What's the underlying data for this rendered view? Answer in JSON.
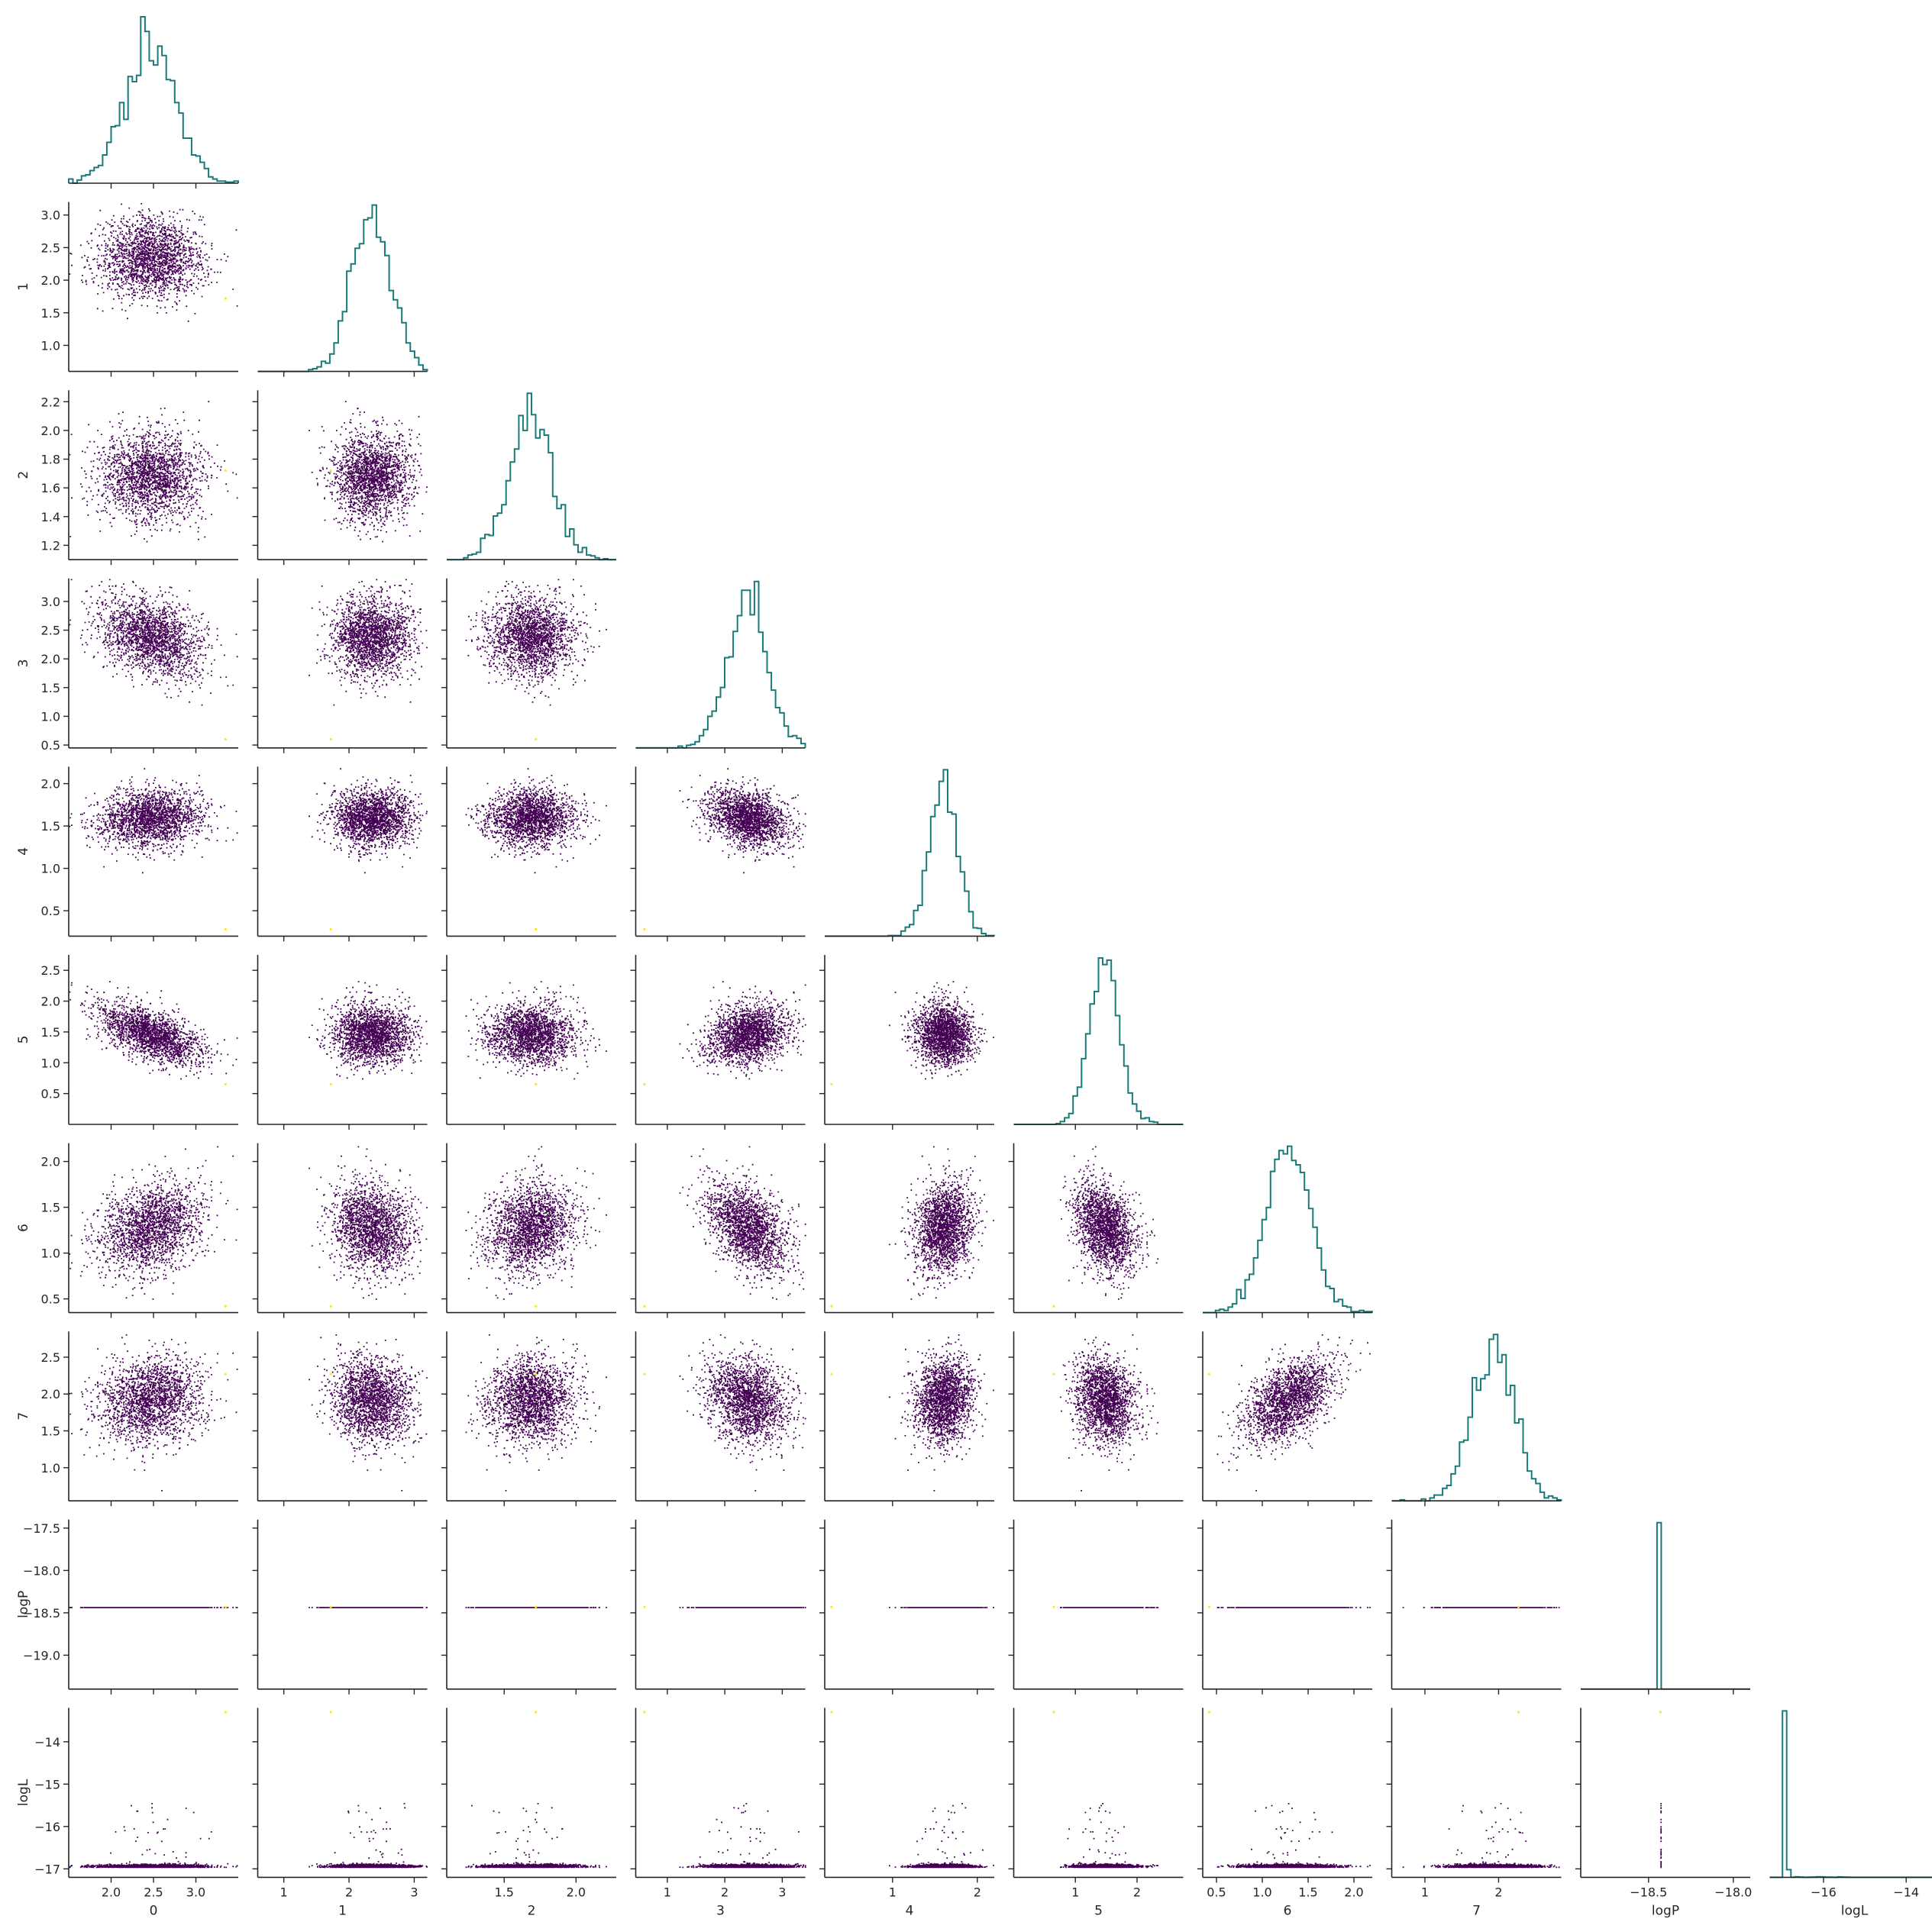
{
  "chart_data": {
    "type": "scatter",
    "kind": "corner-plot (pair plot) with marginal step histograms on the diagonal",
    "variables": [
      "0",
      "1",
      "2",
      "3",
      "4",
      "5",
      "6",
      "7",
      "logP",
      "logL"
    ],
    "grid": false,
    "legend": "none",
    "colors": {
      "scatter": "#440154",
      "outlier": "#fde725",
      "histogram": "#1a7a7a",
      "axis": "#262626"
    },
    "axes": [
      {
        "name": "0",
        "range": [
          1.5,
          3.5
        ],
        "ticks": [
          2.0,
          2.5,
          3.0
        ],
        "ticklabels": [
          "2.0",
          "2.5",
          "3.0"
        ],
        "mean": 2.45,
        "sd": 0.3,
        "outlier": 3.35
      },
      {
        "name": "1",
        "range": [
          0.6,
          3.2
        ],
        "ticks": [
          1.0,
          1.5,
          2.0,
          2.5,
          3.0
        ],
        "ticklabels": [
          "1.0",
          "1.5",
          "2.0",
          "2.5",
          "3.0"
        ],
        "xticks": [
          1,
          2,
          3
        ],
        "xticklabels": [
          "1",
          "2",
          "3"
        ],
        "mean": 2.35,
        "sd": 0.3,
        "outlier": 1.72
      },
      {
        "name": "2",
        "range": [
          1.1,
          2.28
        ],
        "ticks": [
          1.2,
          1.4,
          1.6,
          1.8,
          2.0,
          2.2
        ],
        "ticklabels": [
          "1.2",
          "1.4",
          "1.6",
          "1.8",
          "2.0",
          "2.2"
        ],
        "xticks": [
          1.5,
          2.0
        ],
        "xticklabels": [
          "1.5",
          "2.0"
        ],
        "mean": 1.68,
        "sd": 0.15,
        "outlier": 1.72
      },
      {
        "name": "3",
        "range": [
          0.45,
          3.4
        ],
        "ticks": [
          0.5,
          1.0,
          1.5,
          2.0,
          2.5,
          3.0
        ],
        "ticklabels": [
          "0.5",
          "1.0",
          "1.5",
          "2.0",
          "2.5",
          "3.0"
        ],
        "xticks": [
          1,
          2,
          3
        ],
        "xticklabels": [
          "1",
          "2",
          "3"
        ],
        "mean": 2.4,
        "sd": 0.35,
        "outlier": 0.6
      },
      {
        "name": "4",
        "range": [
          0.2,
          2.2
        ],
        "ticks": [
          0.5,
          1.0,
          1.5,
          2.0
        ],
        "ticklabels": [
          "0.5",
          "1.0",
          "1.5",
          "2.0"
        ],
        "xticks": [
          1,
          2
        ],
        "xticklabels": [
          "1",
          "2"
        ],
        "mean": 1.6,
        "sd": 0.17,
        "outlier": 0.28
      },
      {
        "name": "5",
        "range": [
          0.0,
          2.75
        ],
        "ticks": [
          0.5,
          1.0,
          1.5,
          2.0,
          2.5
        ],
        "ticklabels": [
          "0.5",
          "1.0",
          "1.5",
          "2.0",
          "2.5"
        ],
        "xticks": [
          1,
          2
        ],
        "xticklabels": [
          "1",
          "2"
        ],
        "mean": 1.48,
        "sd": 0.25,
        "outlier": 0.65
      },
      {
        "name": "6",
        "range": [
          0.35,
          2.2
        ],
        "ticks": [
          0.5,
          1.0,
          1.5,
          2.0
        ],
        "ticklabels": [
          "0.5",
          "1.0",
          "1.5",
          "2.0"
        ],
        "mean": 1.28,
        "sd": 0.24,
        "outlier": 0.42
      },
      {
        "name": "7",
        "range": [
          0.55,
          2.85
        ],
        "ticks": [
          1.0,
          1.5,
          2.0,
          2.5
        ],
        "ticklabels": [
          "1.0",
          "1.5",
          "2.0",
          "2.5"
        ],
        "xticks": [
          1,
          2
        ],
        "xticklabels": [
          "1",
          "2"
        ],
        "mean": 1.92,
        "sd": 0.28,
        "outlier": 2.27
      },
      {
        "name": "logP",
        "range": [
          -19.4,
          -17.4
        ],
        "ticks": [
          -19.0,
          -18.5,
          -18.0,
          -17.5
        ],
        "ticklabels": [
          "−19.0",
          "−18.5",
          "−18.0",
          "−17.5"
        ],
        "xrange": [
          -18.9,
          -17.9
        ],
        "xticks": [
          -18.5,
          -18.0
        ],
        "xticklabels": [
          "−18.5",
          "−18.0"
        ],
        "value": -18.43
      },
      {
        "name": "logL",
        "range": [
          -17.2,
          -13.2
        ],
        "ticks": [
          -17,
          -16,
          -15,
          -14
        ],
        "ticklabels": [
          "−17",
          "−16",
          "−15",
          "−14"
        ],
        "xrange": [
          -17.3,
          -13.2
        ],
        "xticks": [
          -16,
          -14
        ],
        "xticklabels": [
          "−16",
          "−14"
        ],
        "base": -16.95,
        "outlier": -13.3
      }
    ],
    "correlations": [
      {
        "pair": [
          "0",
          "3"
        ],
        "r": -0.35
      },
      {
        "pair": [
          "0",
          "5"
        ],
        "r": -0.6
      },
      {
        "pair": [
          "3",
          "4"
        ],
        "r": -0.3
      },
      {
        "pair": [
          "3",
          "6"
        ],
        "r": -0.4
      },
      {
        "pair": [
          "5",
          "6"
        ],
        "r": -0.25
      },
      {
        "pair": [
          "6",
          "7"
        ],
        "r": 0.5
      },
      {
        "pair": [
          "1",
          "6"
        ],
        "r": -0.15
      },
      {
        "pair": [
          "2",
          "6"
        ],
        "r": 0.2
      }
    ],
    "n_samples": 2000
  }
}
